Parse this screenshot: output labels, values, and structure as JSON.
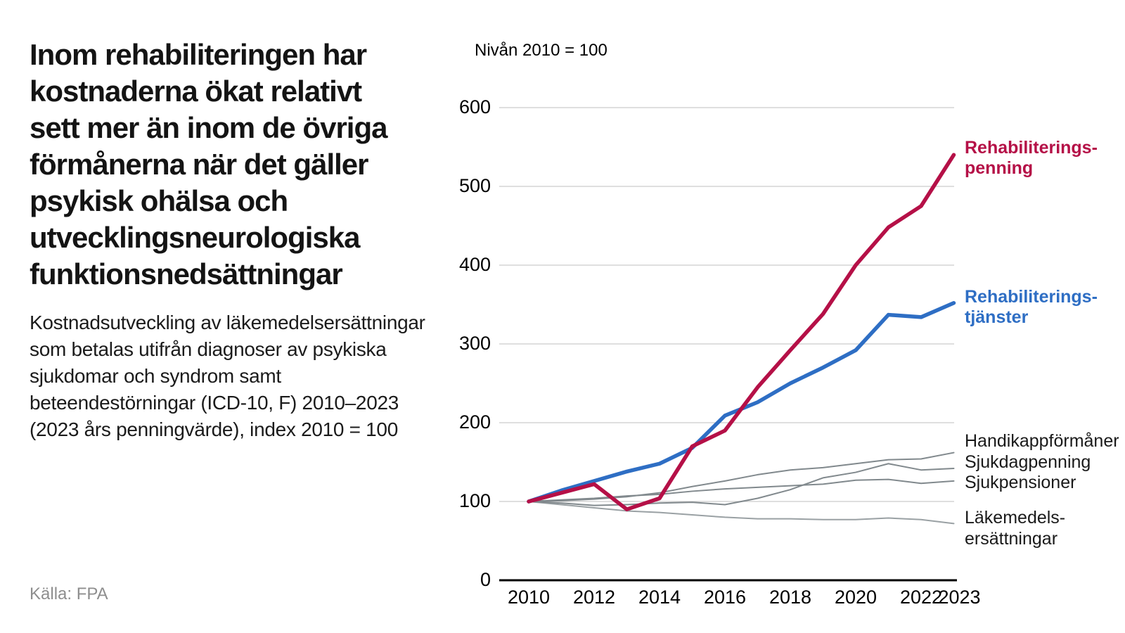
{
  "left_panel": {
    "title": "Inom rehabiliteringen har\nkostnaderna ökat relativt\nsett mer än inom de övriga\nförmånerna när det gäller\npsykisk ohälsa och\nutvecklingsneurologiska\nfunktionsnedsättningar",
    "subtitle": "Kostnadsutveckling av läkemedelsersättningar\nsom betalas utifrån diagnoser av psykiska\nsjukdomar och syndrom samt\nbeteendestörningar (ICD-10, F) 2010–2023\n(2023 års penningvärde), index 2010 = 100",
    "source": "Källa: FPA"
  },
  "chart_data": {
    "type": "line",
    "title": "Nivån 2010 = 100",
    "x": [
      2010,
      2011,
      2012,
      2013,
      2014,
      2015,
      2016,
      2017,
      2018,
      2019,
      2020,
      2021,
      2022,
      2023
    ],
    "x_tick_labels": [
      "2010",
      "2012",
      "2014",
      "2016",
      "2018",
      "2020",
      "2022",
      "2023"
    ],
    "y_ticks": [
      0,
      100,
      200,
      300,
      400,
      500,
      600
    ],
    "ylim": [
      0,
      600
    ],
    "grid": true,
    "grid_color": "#cccccc",
    "axis_color": "#000000",
    "legend_position": "right-annotations",
    "series": [
      {
        "name": "Läkemedelsersättningar",
        "label": "Läkemedels-\nersättningar",
        "color": "#9aa1a4",
        "label_color": "#1a1a1a",
        "width": 2,
        "values": [
          100,
          96,
          92,
          88,
          86,
          83,
          80,
          78,
          78,
          77,
          77,
          79,
          77,
          72
        ]
      },
      {
        "name": "Sjukpensioner",
        "label": "Sjukpensioner",
        "color": "#81898d",
        "label_color": "#1a1a1a",
        "width": 2,
        "values": [
          100,
          102,
          104,
          107,
          109,
          113,
          116,
          118,
          120,
          122,
          127,
          128,
          123,
          126
        ]
      },
      {
        "name": "Sjukdagpenning",
        "label": "Sjukdagpenning",
        "color": "#81898d",
        "label_color": "#1a1a1a",
        "width": 2,
        "values": [
          100,
          98,
          95,
          96,
          98,
          99,
          96,
          104,
          115,
          130,
          137,
          148,
          140,
          142
        ]
      },
      {
        "name": "Handikappförmåner",
        "label": "Handikappförmåner",
        "color": "#81898d",
        "label_color": "#1a1a1a",
        "width": 2,
        "values": [
          100,
          101,
          103,
          106,
          111,
          119,
          126,
          134,
          140,
          143,
          148,
          153,
          154,
          162
        ]
      },
      {
        "name": "Rehabiliteringstjänster",
        "label": "Rehabiliterings-\ntjänster",
        "color": "#2e6ec4",
        "label_color": "#2e6ec4",
        "width": 5.5,
        "values": [
          100,
          114,
          126,
          138,
          148,
          168,
          209,
          226,
          250,
          270,
          292,
          337,
          334,
          352
        ]
      },
      {
        "name": "Rehabiliteringspenning",
        "label": "Rehabiliterings-\npenning",
        "color": "#b51047",
        "label_color": "#b51047",
        "width": 5.5,
        "values": [
          100,
          111,
          122,
          90,
          104,
          170,
          190,
          245,
          292,
          338,
          400,
          448,
          475,
          540
        ]
      }
    ]
  }
}
